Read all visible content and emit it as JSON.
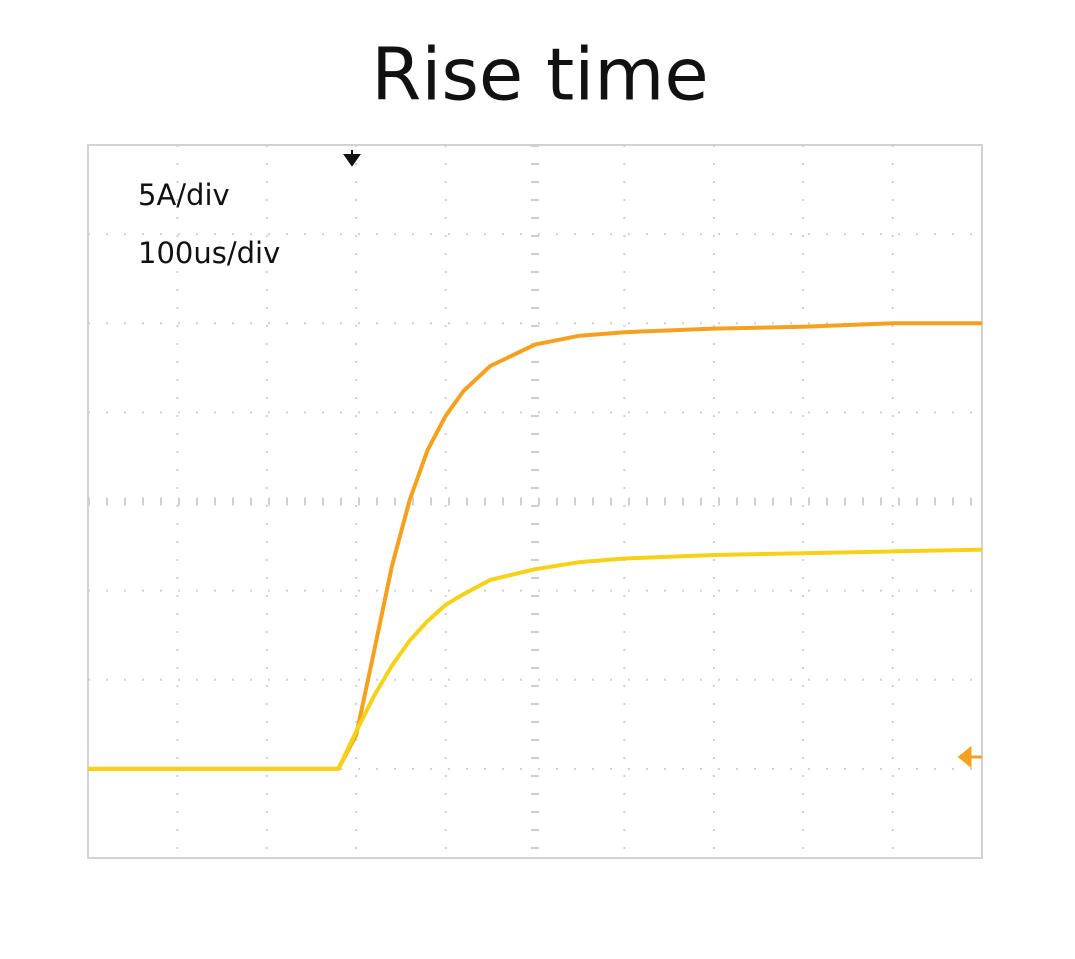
{
  "chart_data": {
    "type": "line",
    "title": "Rise time",
    "annotations": [
      "5A/div",
      "100us/div"
    ],
    "x": [
      -300,
      -200,
      -100,
      -20,
      0,
      20,
      40,
      60,
      80,
      100,
      120,
      150,
      200,
      250,
      300,
      400,
      500,
      600,
      700
    ],
    "series": [
      {
        "color": "#f5a01e",
        "values": [
          0,
          0,
          0,
          0,
          1.9,
          6.6,
          11.4,
          15.1,
          17.9,
          19.8,
          21.2,
          22.6,
          23.8,
          24.3,
          24.5,
          24.7,
          24.8,
          25,
          25
        ]
      },
      {
        "color": "#f7d117",
        "values": [
          0,
          0,
          0,
          0,
          2.1,
          4.1,
          5.8,
          7.2,
          8.3,
          9.2,
          9.8,
          10.6,
          11.2,
          11.6,
          11.8,
          12,
          12.1,
          12.2,
          12.3
        ]
      }
    ],
    "xlim": [
      -300,
      700
    ],
    "ylim": [
      -5,
      35
    ],
    "grid": true
  }
}
